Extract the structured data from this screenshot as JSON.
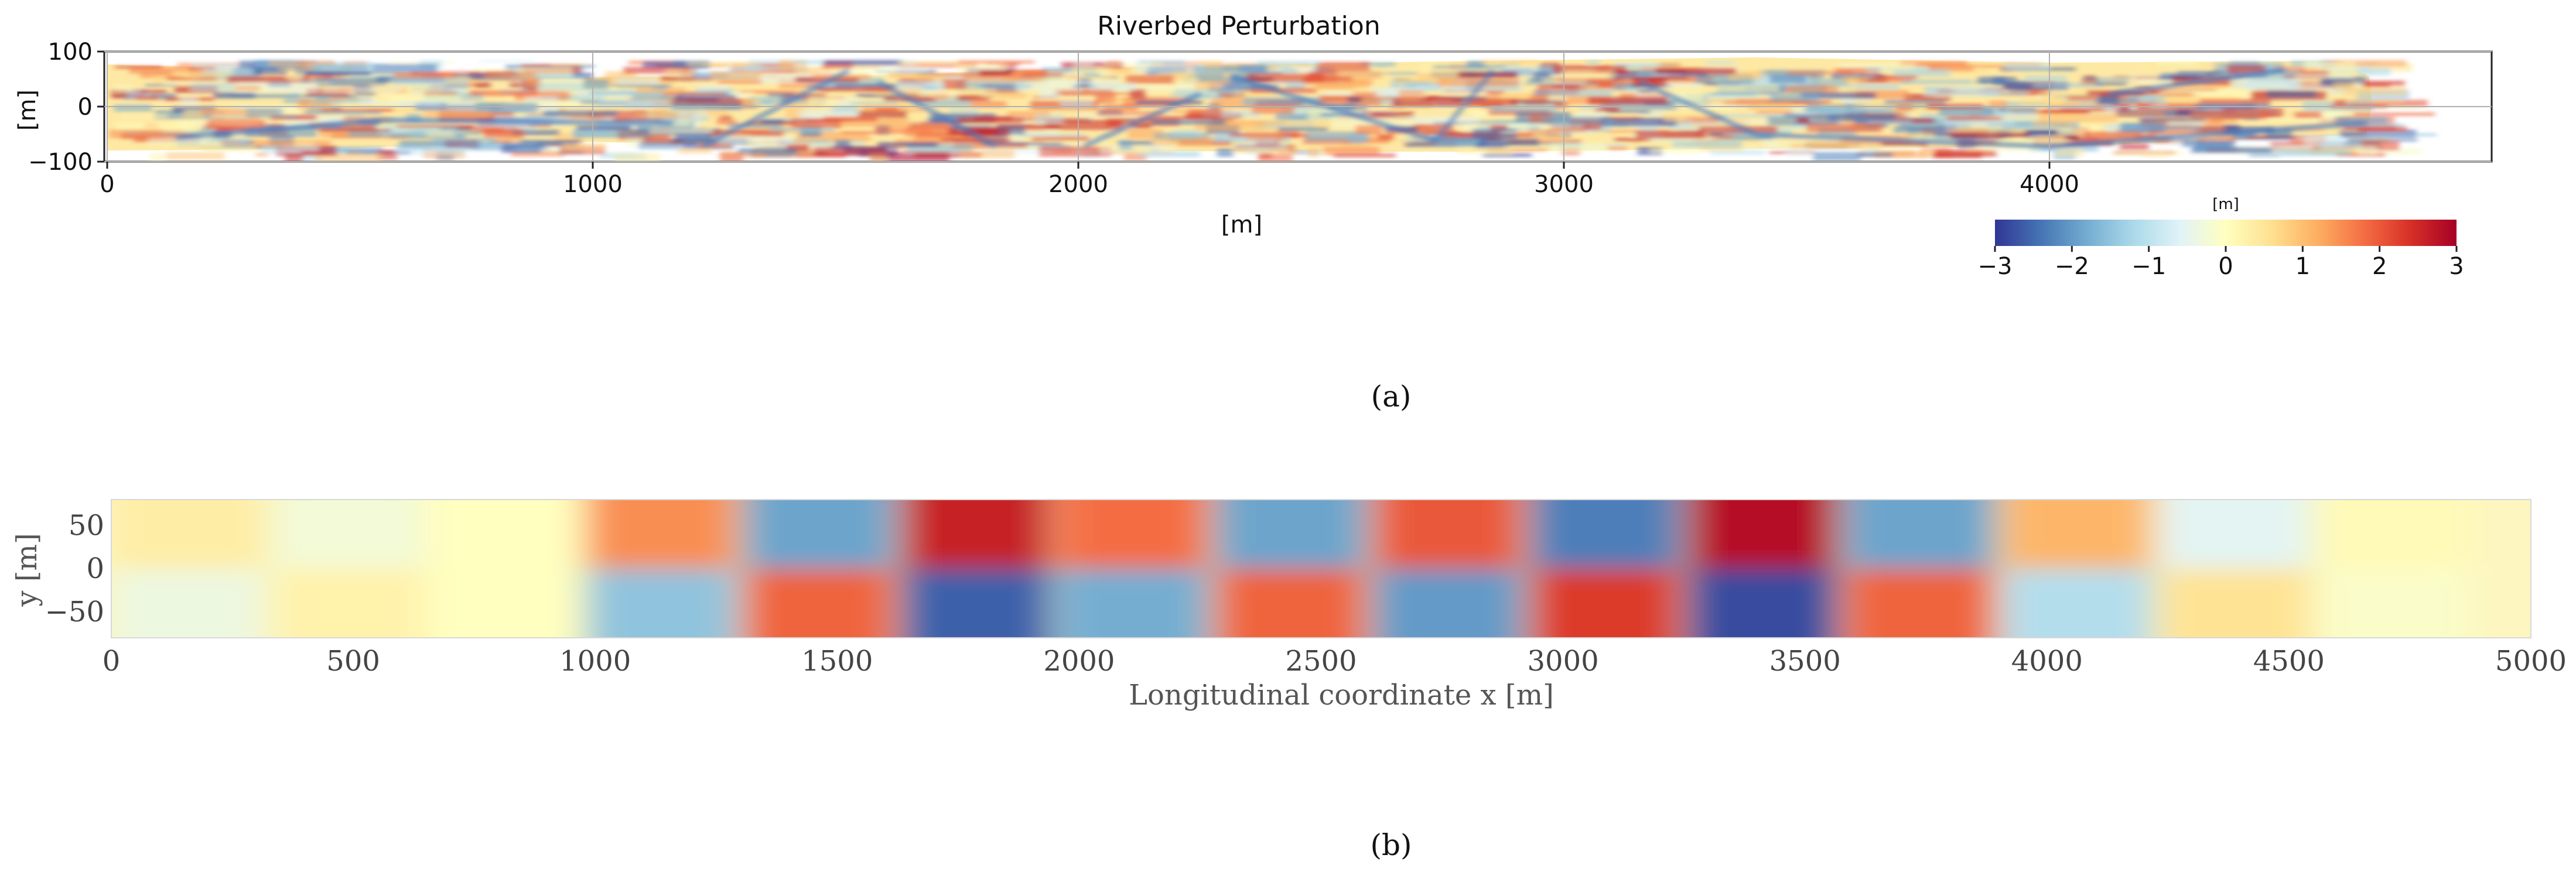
{
  "chart_data": [
    {
      "type": "heatmap",
      "panel_label": "(a)",
      "title": "Riverbed Perturbation",
      "xlabel": "[m]",
      "ylabel": "[m]",
      "xlim": [
        0,
        4900
      ],
      "ylim": [
        -100,
        100
      ],
      "xticks": [
        "0",
        "1000",
        "2000",
        "3000",
        "4000"
      ],
      "yticks": [
        "100",
        "0",
        "−100"
      ],
      "grid": true,
      "colorbar": {
        "label": "[m]",
        "range": [
          -3,
          3
        ],
        "ticks": [
          "−3",
          "−2",
          "−1",
          "0",
          "1",
          "2",
          "3"
        ],
        "colormap": "RdYlBu_r",
        "placement": "bottom-right"
      }
    },
    {
      "type": "heatmap",
      "panel_label": "(b)",
      "xlabel": "Longitudinal coordinate x  [m]",
      "ylabel": "y  [m]",
      "xlim": [
        0,
        5000
      ],
      "ylim": [
        -80,
        80
      ],
      "xticks": [
        "0",
        "500",
        "1000",
        "1500",
        "2000",
        "2500",
        "3000",
        "3500",
        "4000",
        "4500",
        "5000"
      ],
      "yticks": [
        "50",
        "0",
        "−50"
      ],
      "cell_width_m": 325,
      "cell_centers_x": [
        162.5,
        487.5,
        812.5,
        1137.5,
        1462.5,
        1787.5,
        2112.5,
        2437.5,
        2762.5,
        3087.5,
        3412.5,
        3737.5,
        4062.5,
        4387.5,
        4712.5
      ],
      "upper_half_amplitude_m": [
        0.35,
        -0.25,
        0.0,
        1.5,
        -1.9,
        2.6,
        1.8,
        -1.9,
        2.0,
        -2.3,
        2.8,
        -1.9,
        1.1,
        -0.55,
        0.1
      ],
      "lower_half_amplitude_m": [
        -0.35,
        0.25,
        0.0,
        -1.5,
        1.9,
        -2.6,
        -1.8,
        1.9,
        -2.0,
        2.3,
        -2.8,
        1.9,
        -1.1,
        0.55,
        -0.1
      ]
    }
  ]
}
